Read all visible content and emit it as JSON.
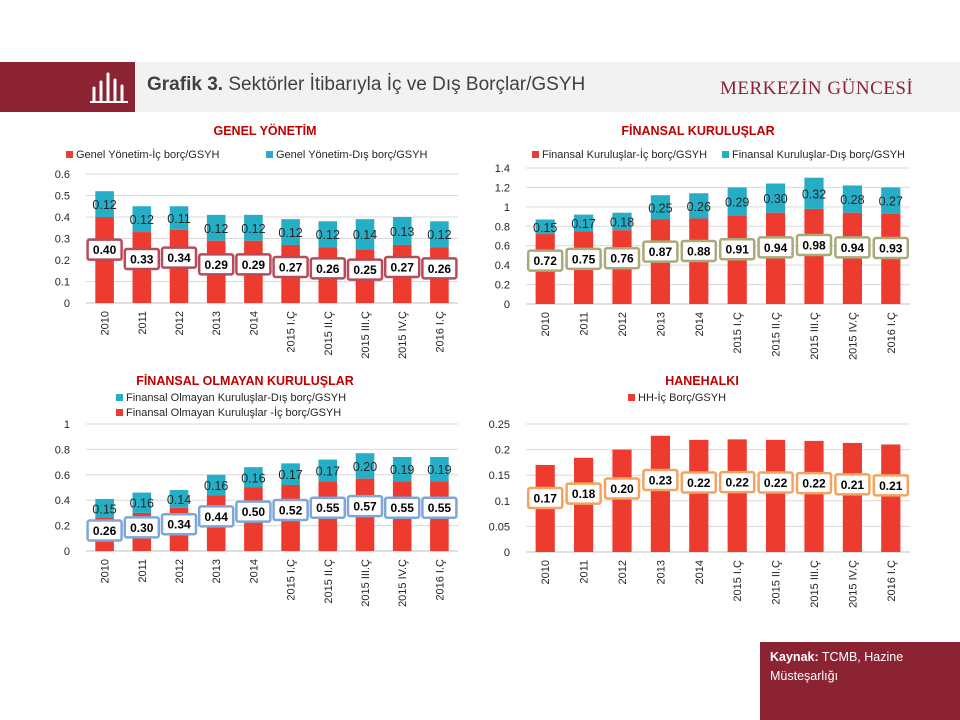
{
  "header": {
    "figure_label": "Grafik 3.",
    "title": "Sektörler İtibarıyla İç ve Dış Borçlar/GSYH",
    "brand": "MERKEZİN GÜNCESİ"
  },
  "source": {
    "label": "Kaynak:",
    "text": "TCMB, Hazine Müsteşarlığı"
  },
  "icon": "bar-chart-icon",
  "colors": {
    "red": "#ee3b2f",
    "teal": "#25aec5",
    "brand": "#8b2332"
  },
  "chart_data": [
    {
      "type": "bar",
      "stacked": true,
      "title": "GENEL YÖNETİM",
      "categories": [
        "2010",
        "2011",
        "2012",
        "2013",
        "2014",
        "2015 I.Ç",
        "2015 II.Ç",
        "2015 III.Ç",
        "2015 IV.Ç",
        "2016 I.Ç"
      ],
      "series": [
        {
          "name": "Genel Yönetim-İç borç/GSYH",
          "values": [
            0.4,
            0.33,
            0.34,
            0.29,
            0.29,
            0.27,
            0.26,
            0.25,
            0.27,
            0.26
          ],
          "labels": [
            "0.40",
            "0.33",
            "0.34",
            "0.29",
            "0.29",
            "0.27",
            "0.26",
            "0.25",
            "0.27",
            "0.26"
          ]
        },
        {
          "name": "Genel Yönetim-Dış borç/GSYH",
          "values": [
            0.12,
            0.12,
            0.11,
            0.12,
            0.12,
            0.12,
            0.12,
            0.14,
            0.13,
            0.12
          ],
          "labels": [
            "0.12",
            "0.12",
            "0.11",
            "0.12",
            "0.12",
            "0.12",
            "0.12",
            "0.14",
            "0.13",
            "0.12"
          ]
        }
      ],
      "ylim": [
        0,
        0.6
      ],
      "yticks": [
        "0",
        "0.1",
        "0.2",
        "0.3",
        "0.4",
        "0.5",
        "0.6"
      ],
      "legend": "top",
      "grid": true,
      "label_box_color": "#b94a5a"
    },
    {
      "type": "bar",
      "stacked": true,
      "title": "FİNANSAL KURULUŞLAR",
      "categories": [
        "2010",
        "2011",
        "2012",
        "2013",
        "2014",
        "2015 I.Ç",
        "2015 II.Ç",
        "2015 III.Ç",
        "2015 IV.Ç",
        "2016 I.Ç"
      ],
      "series": [
        {
          "name": "Finansal Kuruluşlar-İç borç/GSYH",
          "values": [
            0.72,
            0.75,
            0.76,
            0.87,
            0.88,
            0.91,
            0.94,
            0.98,
            0.94,
            0.93
          ],
          "labels": [
            "0.72",
            "0.75",
            "0.76",
            "0.87",
            "0.88",
            "0.91",
            "0.94",
            "0.98",
            "0.94",
            "0.93"
          ]
        },
        {
          "name": "Finansal Kuruluşlar-Dış borç/GSYH",
          "values": [
            0.15,
            0.17,
            0.18,
            0.25,
            0.26,
            0.29,
            0.3,
            0.32,
            0.28,
            0.27
          ],
          "labels": [
            "0.15",
            "0.17",
            "0.18",
            "0.25",
            "0.26",
            "0.29",
            "0.30",
            "0.32",
            "0.28",
            "0.27"
          ]
        }
      ],
      "ylim": [
        0,
        1.4
      ],
      "yticks": [
        "0",
        "0.2",
        "0.4",
        "0.6",
        "0.8",
        "1",
        "1.2",
        "1.4"
      ],
      "legend": "top",
      "grid": true,
      "label_box_color": "#a9a97a"
    },
    {
      "type": "bar",
      "stacked": true,
      "title": "FİNANSAL OLMAYAN KURULUŞLAR",
      "categories": [
        "2010",
        "2011",
        "2012",
        "2013",
        "2014",
        "2015 I.Ç",
        "2015 II.Ç",
        "2015 III.Ç",
        "2015 IV.Ç",
        "2016 I.Ç"
      ],
      "series": [
        {
          "name": "Finansal Olmayan Kuruluşlar -İç borç/GSYH",
          "values": [
            0.26,
            0.3,
            0.34,
            0.44,
            0.5,
            0.52,
            0.55,
            0.57,
            0.55,
            0.55
          ],
          "labels": [
            "0.26",
            "0.30",
            "0.34",
            "0.44",
            "0.50",
            "0.52",
            "0.55",
            "0.57",
            "0.55",
            "0.55"
          ]
        },
        {
          "name": "Finansal Olmayan Kuruluşlar-Dış borç/GSYH",
          "values": [
            0.15,
            0.16,
            0.14,
            0.16,
            0.16,
            0.17,
            0.17,
            0.2,
            0.19,
            0.19
          ],
          "labels": [
            "0.15",
            "0.16",
            "0.14",
            "0.16",
            "0.16",
            "0.17",
            "0.17",
            "0.20",
            "0.19",
            "0.19"
          ]
        }
      ],
      "legend_order": [
        1,
        0
      ],
      "ylim": [
        0,
        1
      ],
      "yticks": [
        "0",
        "0.2",
        "0.4",
        "0.6",
        "0.8",
        "1"
      ],
      "legend": "top",
      "grid": true,
      "label_box_color": "#7fa6d9"
    },
    {
      "type": "bar",
      "stacked": false,
      "title": "HANEHALKI",
      "categories": [
        "2010",
        "2011",
        "2012",
        "2013",
        "2014",
        "2015 I.Ç",
        "2015 II.Ç",
        "2015 III.Ç",
        "2015 IV.Ç",
        "2016 I.Ç"
      ],
      "series": [
        {
          "name": "HH-İç Borç/GSYH",
          "values": [
            0.17,
            0.184,
            0.2,
            0.227,
            0.219,
            0.22,
            0.219,
            0.217,
            0.213,
            0.21
          ],
          "labels": [
            "0.17",
            "0.18",
            "0.20",
            "0.23",
            "0.22",
            "0.22",
            "0.22",
            "0.22",
            "0.21",
            "0.21"
          ]
        }
      ],
      "ylim": [
        0,
        0.25
      ],
      "yticks": [
        "0",
        "0.05",
        "0.1",
        "0.15",
        "0.2",
        "0.25"
      ],
      "legend": "top",
      "grid": true,
      "label_box_color": "#f2a35e"
    }
  ]
}
